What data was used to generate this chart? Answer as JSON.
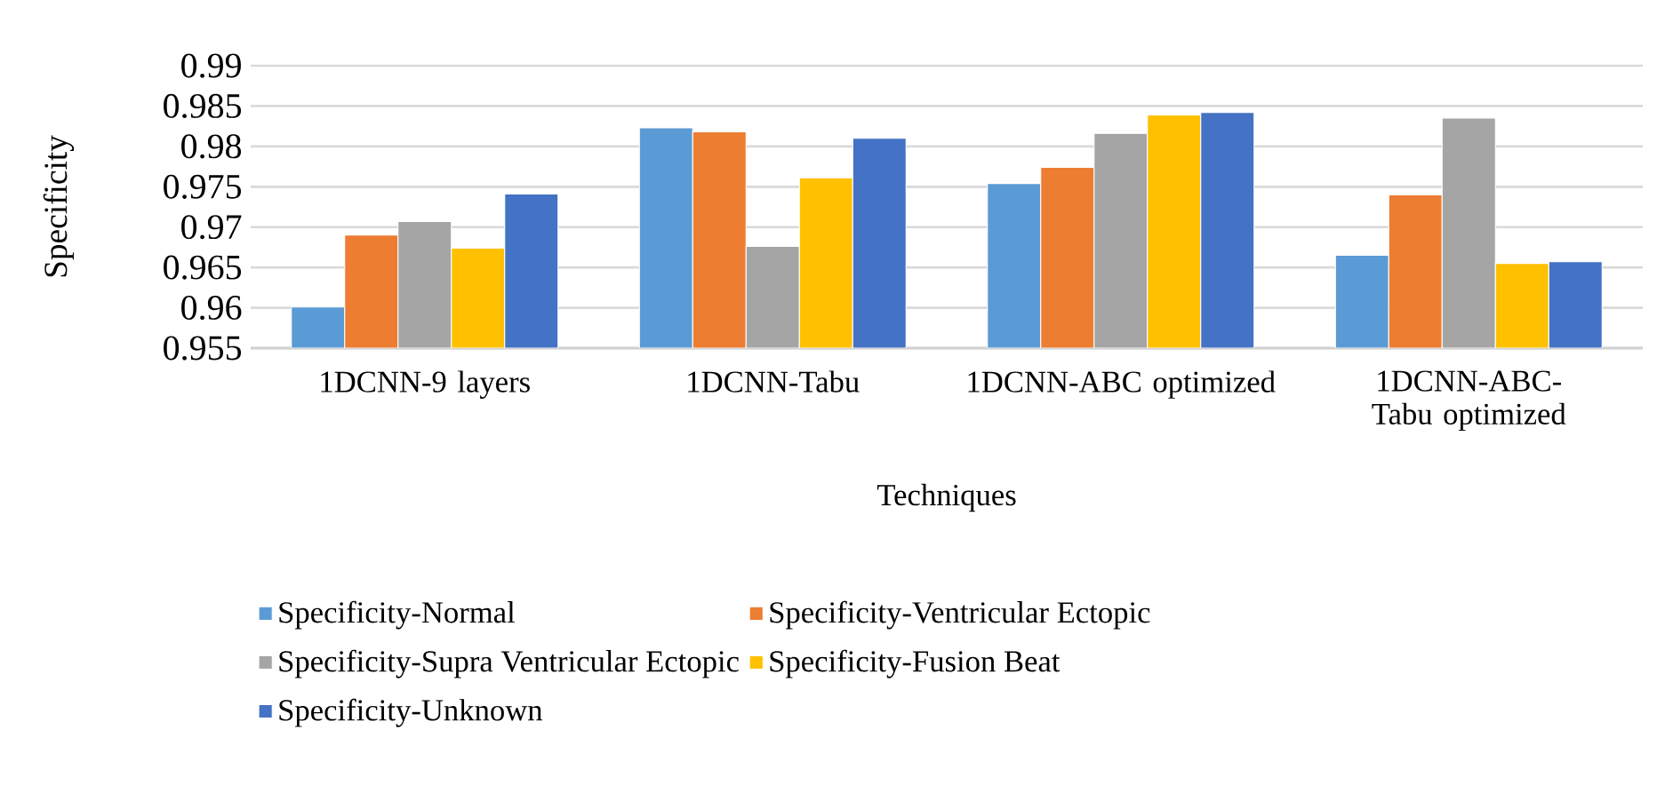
{
  "chart_data": {
    "type": "bar",
    "xlabel": "Techniques",
    "ylabel": "Specificity",
    "categories": [
      "1DCNN-9 layers",
      "1DCNN-Tabu",
      "1DCNN-ABC optimized",
      "1DCNN-ABC-Tabu optimized"
    ],
    "series": [
      {
        "name": "Specificity-Normal",
        "color": "#5b9bd5",
        "values": [
          0.9601,
          0.9823,
          0.9754,
          0.9665
        ]
      },
      {
        "name": "Specificity-Ventricular Ectopic",
        "color": "#ed7d31",
        "values": [
          0.969,
          0.9818,
          0.9774,
          0.974
        ]
      },
      {
        "name": "Specificity-Supra Ventricular Ectopic",
        "color": "#a5a5a5",
        "values": [
          0.9707,
          0.9676,
          0.9816,
          0.9835
        ]
      },
      {
        "name": "Specificity-Fusion Beat",
        "color": "#ffc000",
        "values": [
          0.9674,
          0.9761,
          0.9839,
          0.9655
        ]
      },
      {
        "name": "Specificity-Unknown",
        "color": "#4472c4",
        "values": [
          0.9741,
          0.981,
          0.9842,
          0.9657
        ]
      }
    ],
    "ylim": [
      0.955,
      0.99
    ],
    "yticks": [
      0.955,
      0.96,
      0.965,
      0.97,
      0.975,
      0.98,
      0.985,
      0.99
    ],
    "grid": "y",
    "legend": "bottom"
  }
}
